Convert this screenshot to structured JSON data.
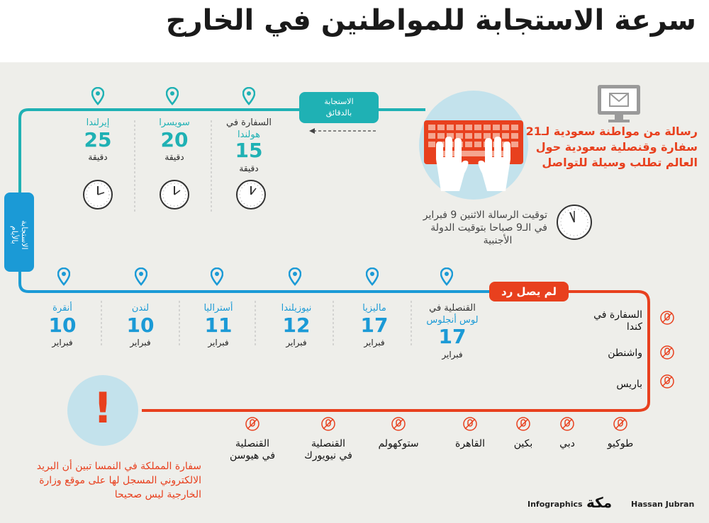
{
  "title": "سرعة الاستجابة للمواطنين في الخارج",
  "intro": {
    "text_lines": [
      "رسالة من مواطنة سعودية لـ21",
      "سفارة وقنصلية سعودية حول",
      "العالم تطلب وسيلة للتواصل"
    ],
    "timing_lines": [
      "توقيت الرسالة الاثنين 9 فبراير",
      "في الـ9 صباحا بتوقيت الدولة",
      "الأجنبية"
    ]
  },
  "minutes_badge": {
    "lines": [
      "الاستجابة",
      "بالدقائق"
    ]
  },
  "days_badge": {
    "lines": [
      "الاستجابة",
      "بالأيام"
    ]
  },
  "no_reply_badge": {
    "label": "لم يصل رد"
  },
  "minutes_responses": [
    {
      "place": "السفارة في",
      "place2": "هولندا",
      "value": "15",
      "unit": "دقيقة"
    },
    {
      "place": "سويسرا",
      "place2": "",
      "value": "20",
      "unit": "دقيقة"
    },
    {
      "place": "إيرلندا",
      "place2": "",
      "value": "25",
      "unit": "دقيقة"
    }
  ],
  "days_responses": [
    {
      "place": "القنصلية في",
      "place2": "لوس أنجلوس",
      "value": "17",
      "unit": "فبراير"
    },
    {
      "place": "ماليزيا",
      "place2": "",
      "value": "17",
      "unit": "فبراير"
    },
    {
      "place": "نيوزيلندا",
      "place2": "",
      "value": "12",
      "unit": "فبراير"
    },
    {
      "place": "أستراليا",
      "place2": "",
      "value": "11",
      "unit": "فبراير"
    },
    {
      "place": "لندن",
      "place2": "",
      "value": "10",
      "unit": "فبراير"
    },
    {
      "place": "أنقرة",
      "place2": "",
      "value": "10",
      "unit": "فبراير"
    }
  ],
  "no_reply_right": [
    {
      "line1": "السفارة في",
      "line2": "كندا"
    },
    {
      "line1": "واشنطن",
      "line2": ""
    },
    {
      "line1": "باريس",
      "line2": ""
    }
  ],
  "no_reply_bottom": [
    {
      "line1": "طوكيو",
      "line2": ""
    },
    {
      "line1": "دبي",
      "line2": ""
    },
    {
      "line1": "بكين",
      "line2": ""
    },
    {
      "line1": "القاهرة",
      "line2": ""
    },
    {
      "line1": "ستوكهولم",
      "line2": ""
    },
    {
      "line1": "القنصلية",
      "line2": "في نيويورك"
    },
    {
      "line1": "القنصلية",
      "line2": "في هيوسن"
    }
  ],
  "warning": {
    "mark": "!",
    "lines": [
      "سفارة المملكة في النمسا تبين أن البريد",
      "الالكتروني المسجل لها على موقع وزارة",
      "الخارجية ليس صحيحا"
    ]
  },
  "footer": {
    "left": "Infographics",
    "logo": "مكة",
    "right": "Hassan Jubran"
  },
  "colors": {
    "teal": "#1fb1b4",
    "blue": "#1b9ad6",
    "orange": "#e8401e",
    "background": "#eeeeea"
  }
}
